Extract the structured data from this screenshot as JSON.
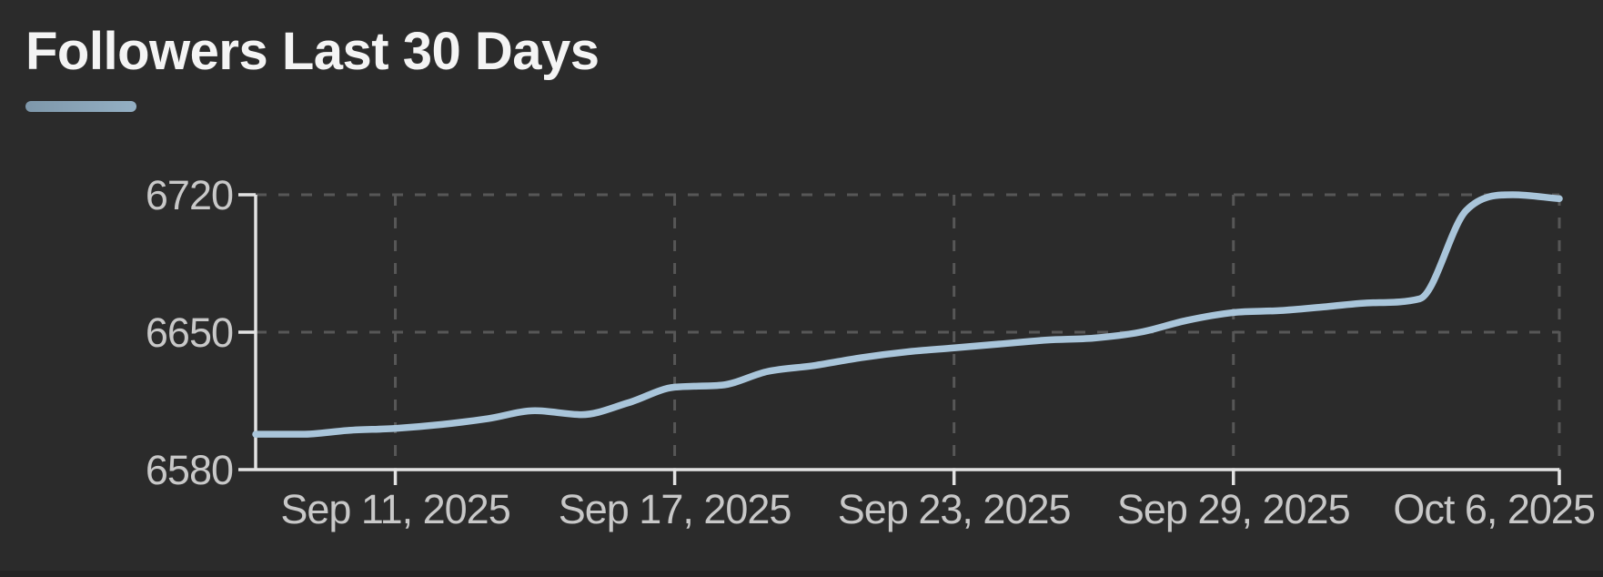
{
  "page": {
    "background": "#2b2b2b"
  },
  "header": {
    "title": "Followers Last 30 Days",
    "accent_color": "#8aa5b8"
  },
  "chart_data": {
    "type": "line",
    "title": "Followers Last 30 Days",
    "x": [
      "Sep 8, 2025",
      "Sep 9, 2025",
      "Sep 10, 2025",
      "Sep 11, 2025",
      "Sep 12, 2025",
      "Sep 13, 2025",
      "Sep 14, 2025",
      "Sep 15, 2025",
      "Sep 16, 2025",
      "Sep 17, 2025",
      "Sep 18, 2025",
      "Sep 19, 2025",
      "Sep 20, 2025",
      "Sep 21, 2025",
      "Sep 22, 2025",
      "Sep 23, 2025",
      "Sep 24, 2025",
      "Sep 25, 2025",
      "Sep 26, 2025",
      "Sep 27, 2025",
      "Sep 28, 2025",
      "Sep 29, 2025",
      "Sep 30, 2025",
      "Oct 1, 2025",
      "Oct 2, 2025",
      "Oct 3, 2025",
      "Oct 4, 2025",
      "Oct 5, 2025",
      "Oct 6, 2025"
    ],
    "series": [
      {
        "name": "Followers",
        "values": [
          6598,
          6598,
          6600,
          6601,
          6603,
          6606,
          6610,
          6608,
          6614,
          6622,
          6623,
          6630,
          6633,
          6637,
          6640,
          6642,
          6644,
          6646,
          6647,
          6650,
          6656,
          6660,
          6661,
          6663,
          6665,
          6667,
          6712,
          6720,
          6718
        ]
      }
    ],
    "x_ticks": [
      {
        "index": 3,
        "label": "Sep 11, 2025"
      },
      {
        "index": 9,
        "label": "Sep 17, 2025"
      },
      {
        "index": 15,
        "label": "Sep 23, 2025"
      },
      {
        "index": 21,
        "label": "Sep 29, 2025"
      },
      {
        "index": 28,
        "label": "Oct 6, 2025"
      }
    ],
    "y_ticks": [
      6580,
      6650,
      6720
    ],
    "ylim": [
      6580,
      6720
    ],
    "xlabel": "",
    "ylabel": "",
    "grid": "dashed",
    "legend": "none",
    "colors": {
      "line": "#a9c5da",
      "axis": "#e3e3e3",
      "grid": "#575757",
      "labels": "#c8c8c8",
      "background": "#2b2b2b"
    }
  }
}
